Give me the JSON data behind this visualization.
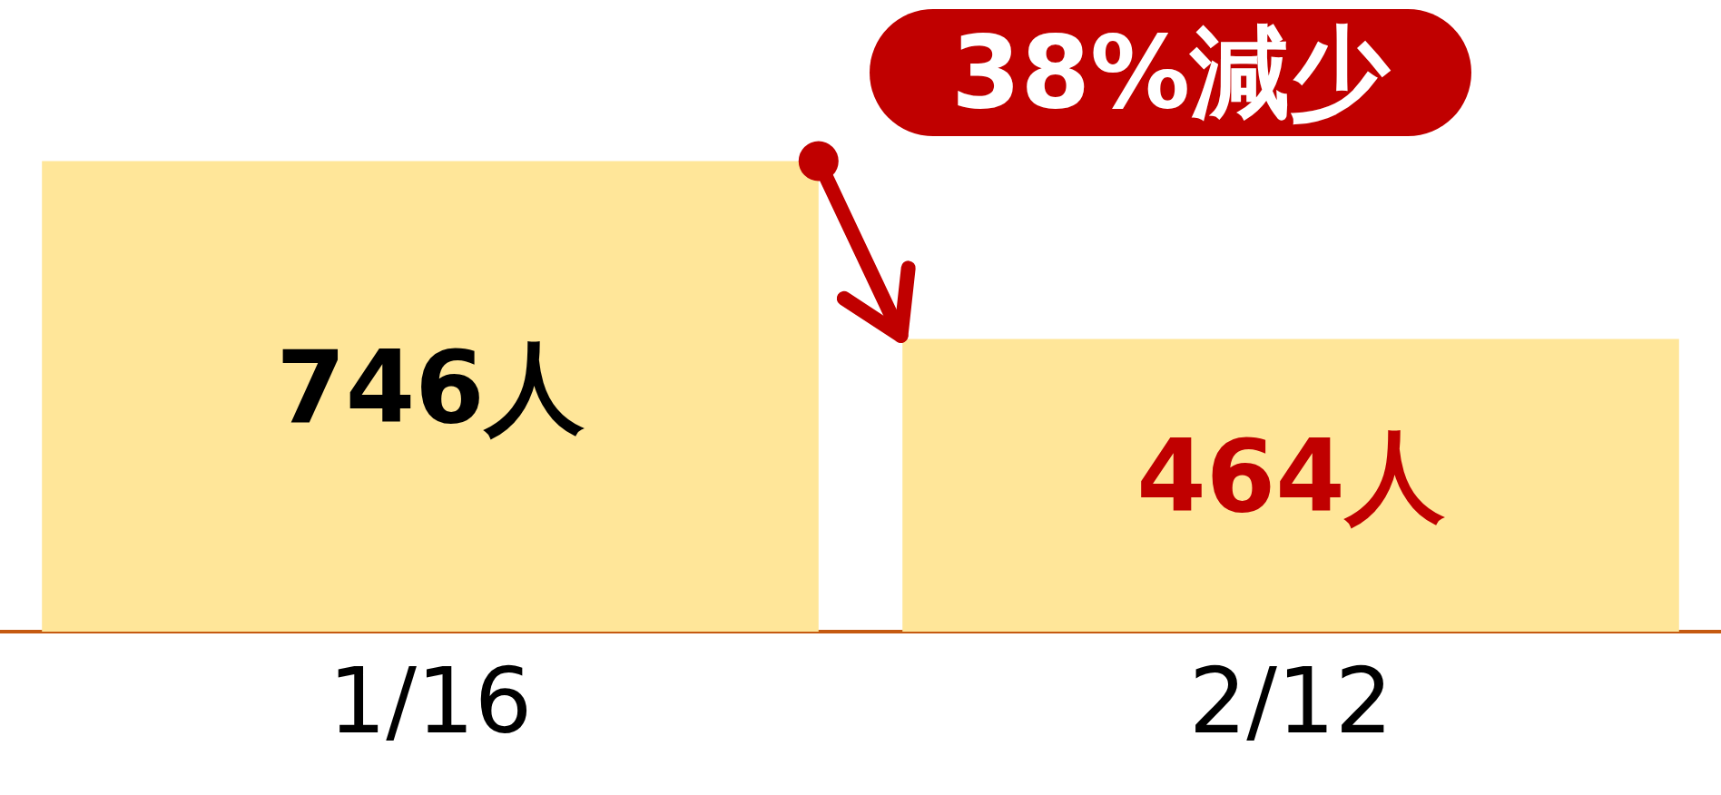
{
  "chart_data": {
    "type": "bar",
    "categories": [
      "1/16",
      "2/12"
    ],
    "series": [
      {
        "color": "#ffe699",
        "values": [
          746,
          464
        ],
        "value_labels": [
          "746人",
          "464人"
        ]
      }
    ],
    "tick_labels": "x",
    "grid": false,
    "legend": false,
    "annotations": [
      "38%減少"
    ]
  }
}
